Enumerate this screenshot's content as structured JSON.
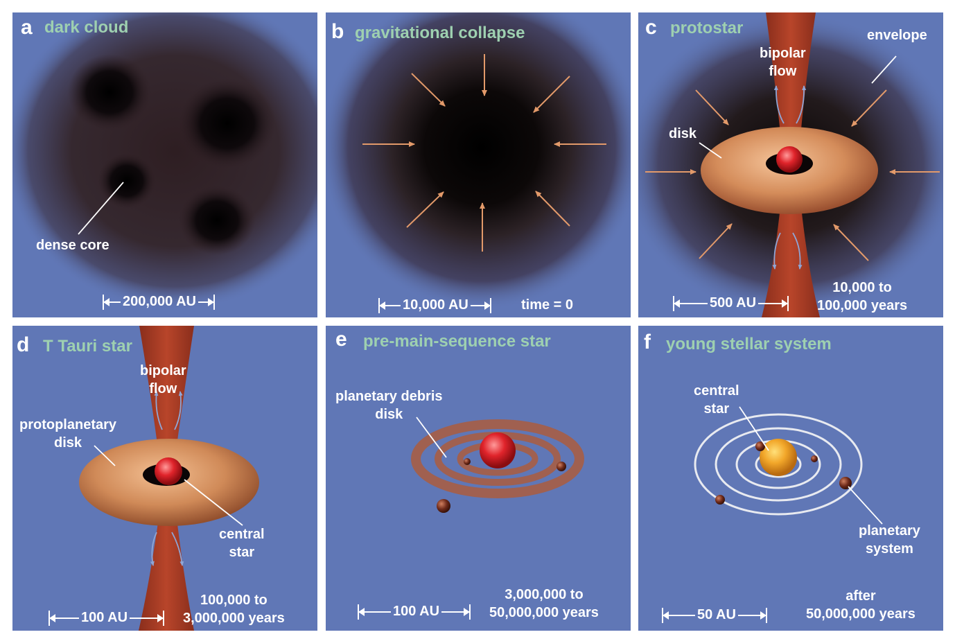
{
  "panels": {
    "a": {
      "letter": "a",
      "title": "dark cloud",
      "labels": {
        "dense_core": "dense core"
      },
      "scale": "200,000 AU"
    },
    "b": {
      "letter": "b",
      "title": "gravitational collapse",
      "scale": "10,000 AU",
      "time": "time = 0"
    },
    "c": {
      "letter": "c",
      "title": "protostar",
      "labels": {
        "envelope": "envelope",
        "bipolar_flow_1": "bipolar",
        "bipolar_flow_2": "flow",
        "disk": "disk"
      },
      "scale": "500 AU",
      "years_1": "10,000 to",
      "years_2": "100,000 years"
    },
    "d": {
      "letter": "d",
      "title": "T Tauri star",
      "labels": {
        "bipolar_flow_1": "bipolar",
        "bipolar_flow_2": "flow",
        "disk_1": "protoplanetary",
        "disk_2": "disk",
        "star_1": "central",
        "star_2": "star"
      },
      "scale": "100 AU",
      "years_1": "100,000 to",
      "years_2": "3,000,000 years"
    },
    "e": {
      "letter": "e",
      "title": "pre-main-sequence star",
      "labels": {
        "debris_1": "planetary debris",
        "debris_2": "disk"
      },
      "scale": "100 AU",
      "years_1": "3,000,000 to",
      "years_2": "50,000,000 years"
    },
    "f": {
      "letter": "f",
      "title": "young stellar system",
      "labels": {
        "star_1": "central",
        "star_2": "star",
        "system_1": "planetary",
        "system_2": "system"
      },
      "scale": "50 AU",
      "years_1": "after",
      "years_2": "50,000,000 years"
    }
  },
  "colors": {
    "panel_bg": "#6077b6",
    "title_green": "#9ed0b0",
    "arrow_orange": "#e39a6a",
    "flow_red": "#a53a22",
    "disk_tan": "#d28a5a",
    "star_red": "#e0242b",
    "star_yellow": "#f2a72a"
  }
}
